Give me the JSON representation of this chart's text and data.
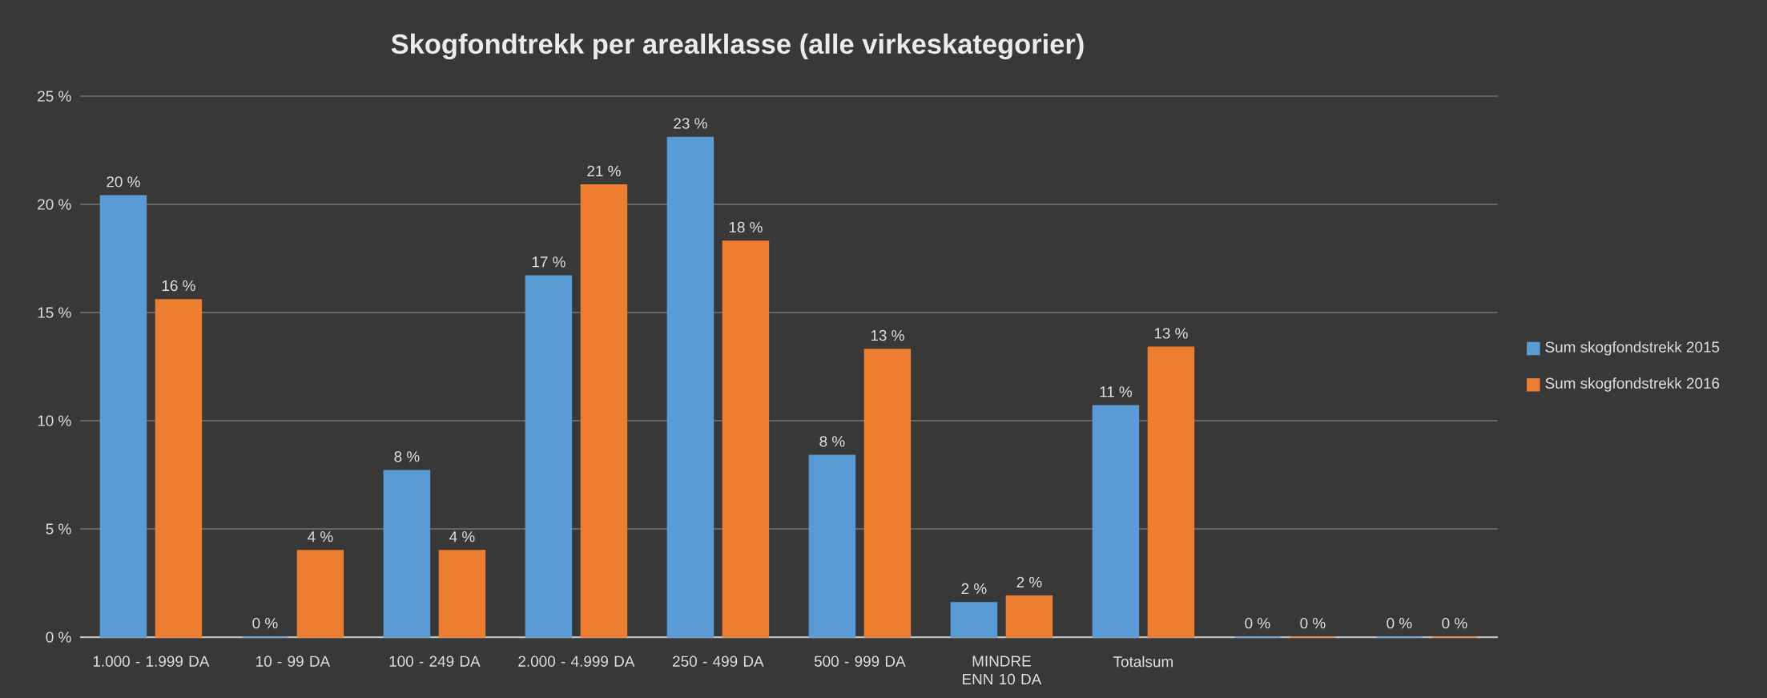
{
  "chart_data": {
    "type": "bar",
    "title": "Skogfondtrekk per arealklasse (alle virkeskategorier)",
    "categories": [
      "1.000 -  1.999 DA",
      "10 -    99 DA",
      "100 -    249 DA",
      "2.000 -  4.999 DA",
      "250 -    499 DA",
      "500 -    999 DA",
      "MINDRE ENN 10 DA",
      "Totalsum",
      null,
      null
    ],
    "series": [
      {
        "name": "Sum skogfondstrekk 2015",
        "color": "#5b9bd5",
        "values": [
          20.4,
          0,
          7.7,
          16.7,
          23.1,
          8.4,
          1.6,
          10.7,
          0,
          0
        ],
        "value_labels": [
          "20 %",
          "0 %",
          "8 %",
          "17 %",
          "23 %",
          "8 %",
          "2 %",
          "11 %",
          "0 %",
          "0 %"
        ]
      },
      {
        "name": "Sum skogfondstrekk 2016",
        "color": "#ed7d31",
        "values": [
          15.6,
          4.0,
          4.0,
          20.9,
          18.3,
          13.3,
          1.9,
          13.4,
          0,
          0
        ],
        "value_labels": [
          "16 %",
          "4 %",
          "4 %",
          "21 %",
          "18 %",
          "13 %",
          "2 %",
          "13 %",
          "0 %",
          "0 %"
        ]
      }
    ],
    "ylim": [
      0,
      25
    ],
    "yticks": [
      {
        "value": 0,
        "label": "0 %"
      },
      {
        "value": 5,
        "label": "5 %"
      },
      {
        "value": 10,
        "label": "10 %"
      },
      {
        "value": 15,
        "label": "15 %"
      },
      {
        "value": 20,
        "label": "20 %"
      },
      {
        "value": 25,
        "label": "25 %"
      }
    ],
    "grid": "y",
    "legend": "right"
  }
}
